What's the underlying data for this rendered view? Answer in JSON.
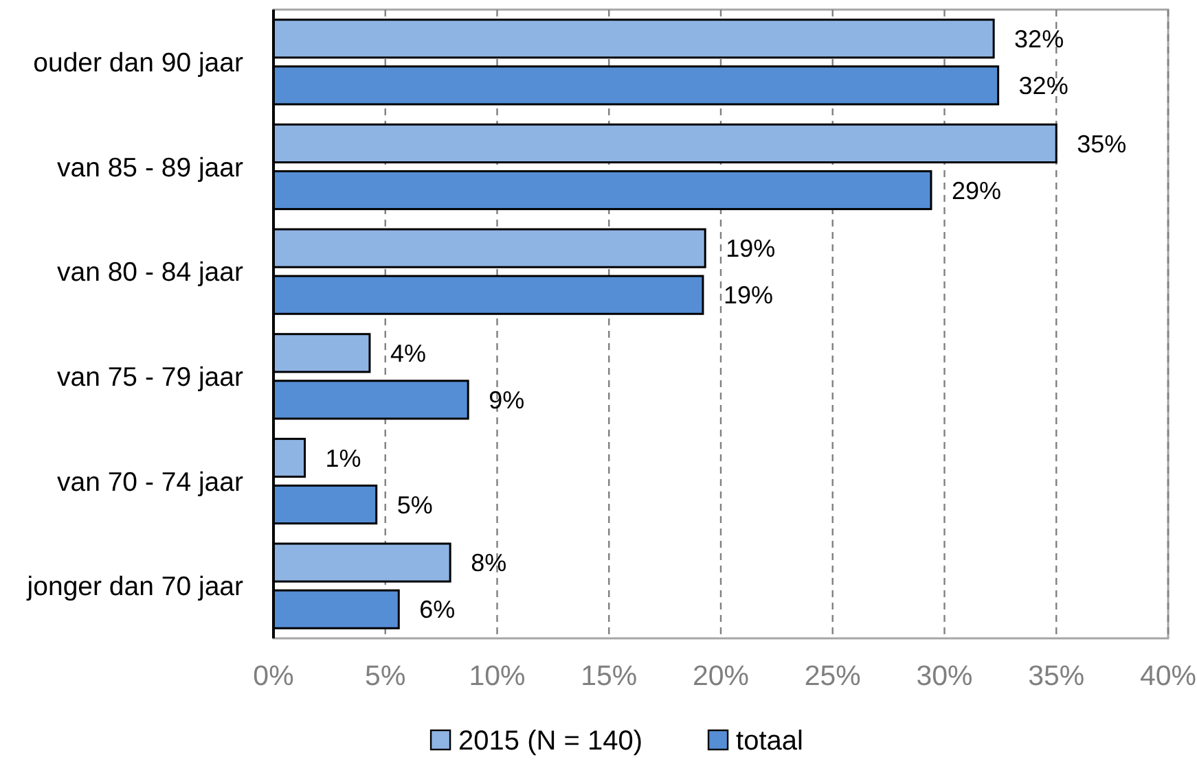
{
  "chart_data": {
    "type": "bar",
    "orientation": "horizontal",
    "categories": [
      "ouder dan 90 jaar",
      "van 85 - 89 jaar",
      "van 80 - 84 jaar",
      "van 75 - 79 jaar",
      "van 70 - 74 jaar",
      "jonger dan 70 jaar"
    ],
    "series": [
      {
        "name": "2015 (N = 140)",
        "color": "#8eb4e3",
        "values": [
          32.2,
          35.0,
          19.3,
          4.3,
          1.4,
          7.9
        ],
        "value_labels": [
          "32%",
          "35%",
          "19%",
          "4%",
          "1%",
          "8%"
        ]
      },
      {
        "name": "totaal",
        "color": "#558ed5",
        "values": [
          32.4,
          29.4,
          19.2,
          8.7,
          4.6,
          5.6
        ],
        "value_labels": [
          "32%",
          "29%",
          "19%",
          "9%",
          "5%",
          "6%"
        ]
      }
    ],
    "xlim": [
      0,
      40
    ],
    "xticks": [
      {
        "value": 0,
        "label": "0%"
      },
      {
        "value": 5,
        "label": "5%"
      },
      {
        "value": 10,
        "label": "10%"
      },
      {
        "value": 15,
        "label": "15%"
      },
      {
        "value": 20,
        "label": "20%"
      },
      {
        "value": 25,
        "label": "25%"
      },
      {
        "value": 30,
        "label": "30%"
      },
      {
        "value": 35,
        "label": "35%"
      },
      {
        "value": 40,
        "label": "40%"
      }
    ],
    "grid": "x",
    "legend": "bottom"
  }
}
